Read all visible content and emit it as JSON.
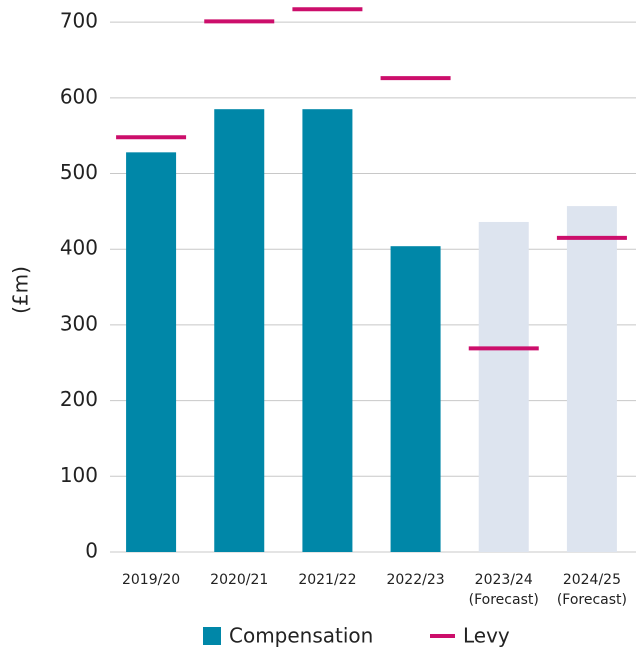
{
  "chart_data": {
    "type": "bar",
    "y_label": "(£m)",
    "categories": [
      "2019/20",
      "2020/21",
      "2021/22",
      "2022/23",
      "2023/24 (Forecast)",
      "2024/25 (Forecast)"
    ],
    "series": [
      {
        "name": "Compensation",
        "color": "#0087a8",
        "bar_colors": [
          "#0087a8",
          "#0087a8",
          "#0087a8",
          "#0087a8",
          "#dde4ef",
          "#dde4ef"
        ],
        "values": [
          528,
          585,
          585,
          404,
          436,
          457
        ]
      },
      {
        "name": "Levy",
        "color": "#cc0e6b",
        "mark": "dash",
        "values": [
          548,
          701,
          717,
          626,
          269,
          415
        ]
      }
    ],
    "ylim": [
      0,
      720
    ],
    "yticks": [
      0,
      100,
      200,
      300,
      400,
      500,
      600,
      700
    ],
    "grid": true,
    "legend": "bottom"
  }
}
